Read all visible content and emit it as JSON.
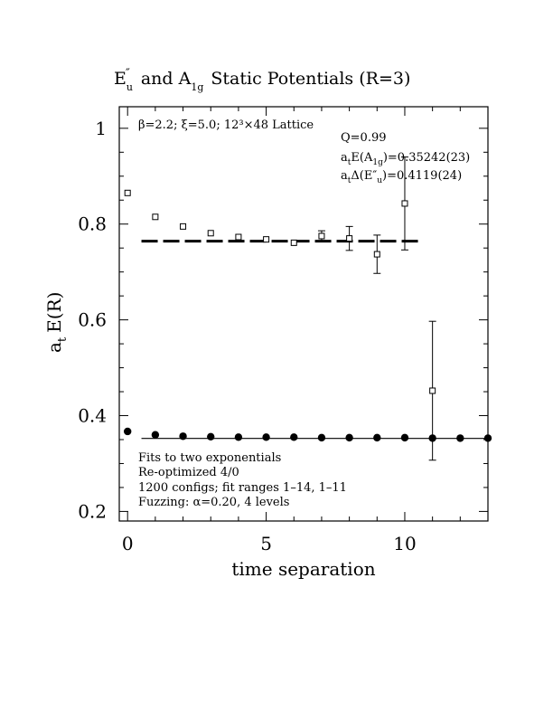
{
  "chart_data": {
    "type": "scatter",
    "title": {
      "p1": "E",
      "p1_sub": "u",
      "p1_sup": "″",
      "p2": "and A",
      "p2_sub": "1g",
      "p3": "Static Potentials (R=3)"
    },
    "xlabel": "time separation",
    "ylabel": {
      "base": "a",
      "sub": "t",
      "rest": "E(R)"
    },
    "xlim": [
      -0.3,
      13
    ],
    "ylim": [
      0.18,
      1.045
    ],
    "x_ticks": [
      0,
      5,
      10
    ],
    "x_tick_labels": [
      "0",
      "5",
      "10"
    ],
    "y_ticks": [
      0.2,
      0.4,
      0.6,
      0.8,
      1.0
    ],
    "y_tick_labels": [
      "0.2",
      "0.4",
      "0.6",
      "0.8",
      "1"
    ],
    "top_left_label": "β=2.2; ξ=5.0; 12³×48 Lattice",
    "fit_info": {
      "q": "Q=0.99",
      "e_a1g": {
        "pre": "a",
        "pre_sub": "t",
        "mid": "E(A",
        "mid_sub": "1g",
        "post": ")=0.35242(23)"
      },
      "delta_eu": {
        "pre": "a",
        "pre_sub": "t",
        "mid": "Δ(E″",
        "mid_sub": "u",
        "post": ")=0.4119(24)"
      }
    },
    "bottom_notes": [
      "Fits to two exponentials",
      "Re-optimized 4/0",
      "1200 configs; fit ranges 1–14, 1–11",
      "Fuzzing: α=0.20, 4 levels"
    ],
    "series": [
      {
        "marker": "open-square",
        "points": [
          {
            "x": 0,
            "y": 0.865,
            "err": 0.004
          },
          {
            "x": 1,
            "y": 0.815,
            "err": 0.004
          },
          {
            "x": 2,
            "y": 0.795,
            "err": 0.004
          },
          {
            "x": 3,
            "y": 0.781,
            "err": 0.004
          },
          {
            "x": 4,
            "y": 0.773,
            "err": 0.005
          },
          {
            "x": 5,
            "y": 0.768,
            "err": 0.005
          },
          {
            "x": 6,
            "y": 0.761,
            "err": 0.005
          },
          {
            "x": 7,
            "y": 0.775,
            "err": 0.011
          },
          {
            "x": 8,
            "y": 0.77,
            "err": 0.025
          },
          {
            "x": 9,
            "y": 0.737,
            "err": 0.04
          },
          {
            "x": 10,
            "y": 0.843,
            "err": 0.097
          },
          {
            "x": 11,
            "y": 0.452,
            "err": 0.145
          }
        ]
      },
      {
        "marker": "filled-circle",
        "points": [
          {
            "x": 0,
            "y": 0.367
          },
          {
            "x": 1,
            "y": 0.36
          },
          {
            "x": 2,
            "y": 0.357
          },
          {
            "x": 3,
            "y": 0.356
          },
          {
            "x": 4,
            "y": 0.355
          },
          {
            "x": 5,
            "y": 0.355
          },
          {
            "x": 6,
            "y": 0.355
          },
          {
            "x": 7,
            "y": 0.354
          },
          {
            "x": 8,
            "y": 0.354
          },
          {
            "x": 9,
            "y": 0.354
          },
          {
            "x": 10,
            "y": 0.354
          },
          {
            "x": 11,
            "y": 0.353
          },
          {
            "x": 12,
            "y": 0.353
          },
          {
            "x": 13,
            "y": 0.353
          }
        ]
      }
    ],
    "fit_lines": [
      {
        "style": "dashed",
        "y": 0.7643,
        "x_range": [
          0.5,
          10.5
        ]
      },
      {
        "style": "solid",
        "y": 0.35242,
        "x_range": [
          0.5,
          13
        ]
      }
    ]
  }
}
